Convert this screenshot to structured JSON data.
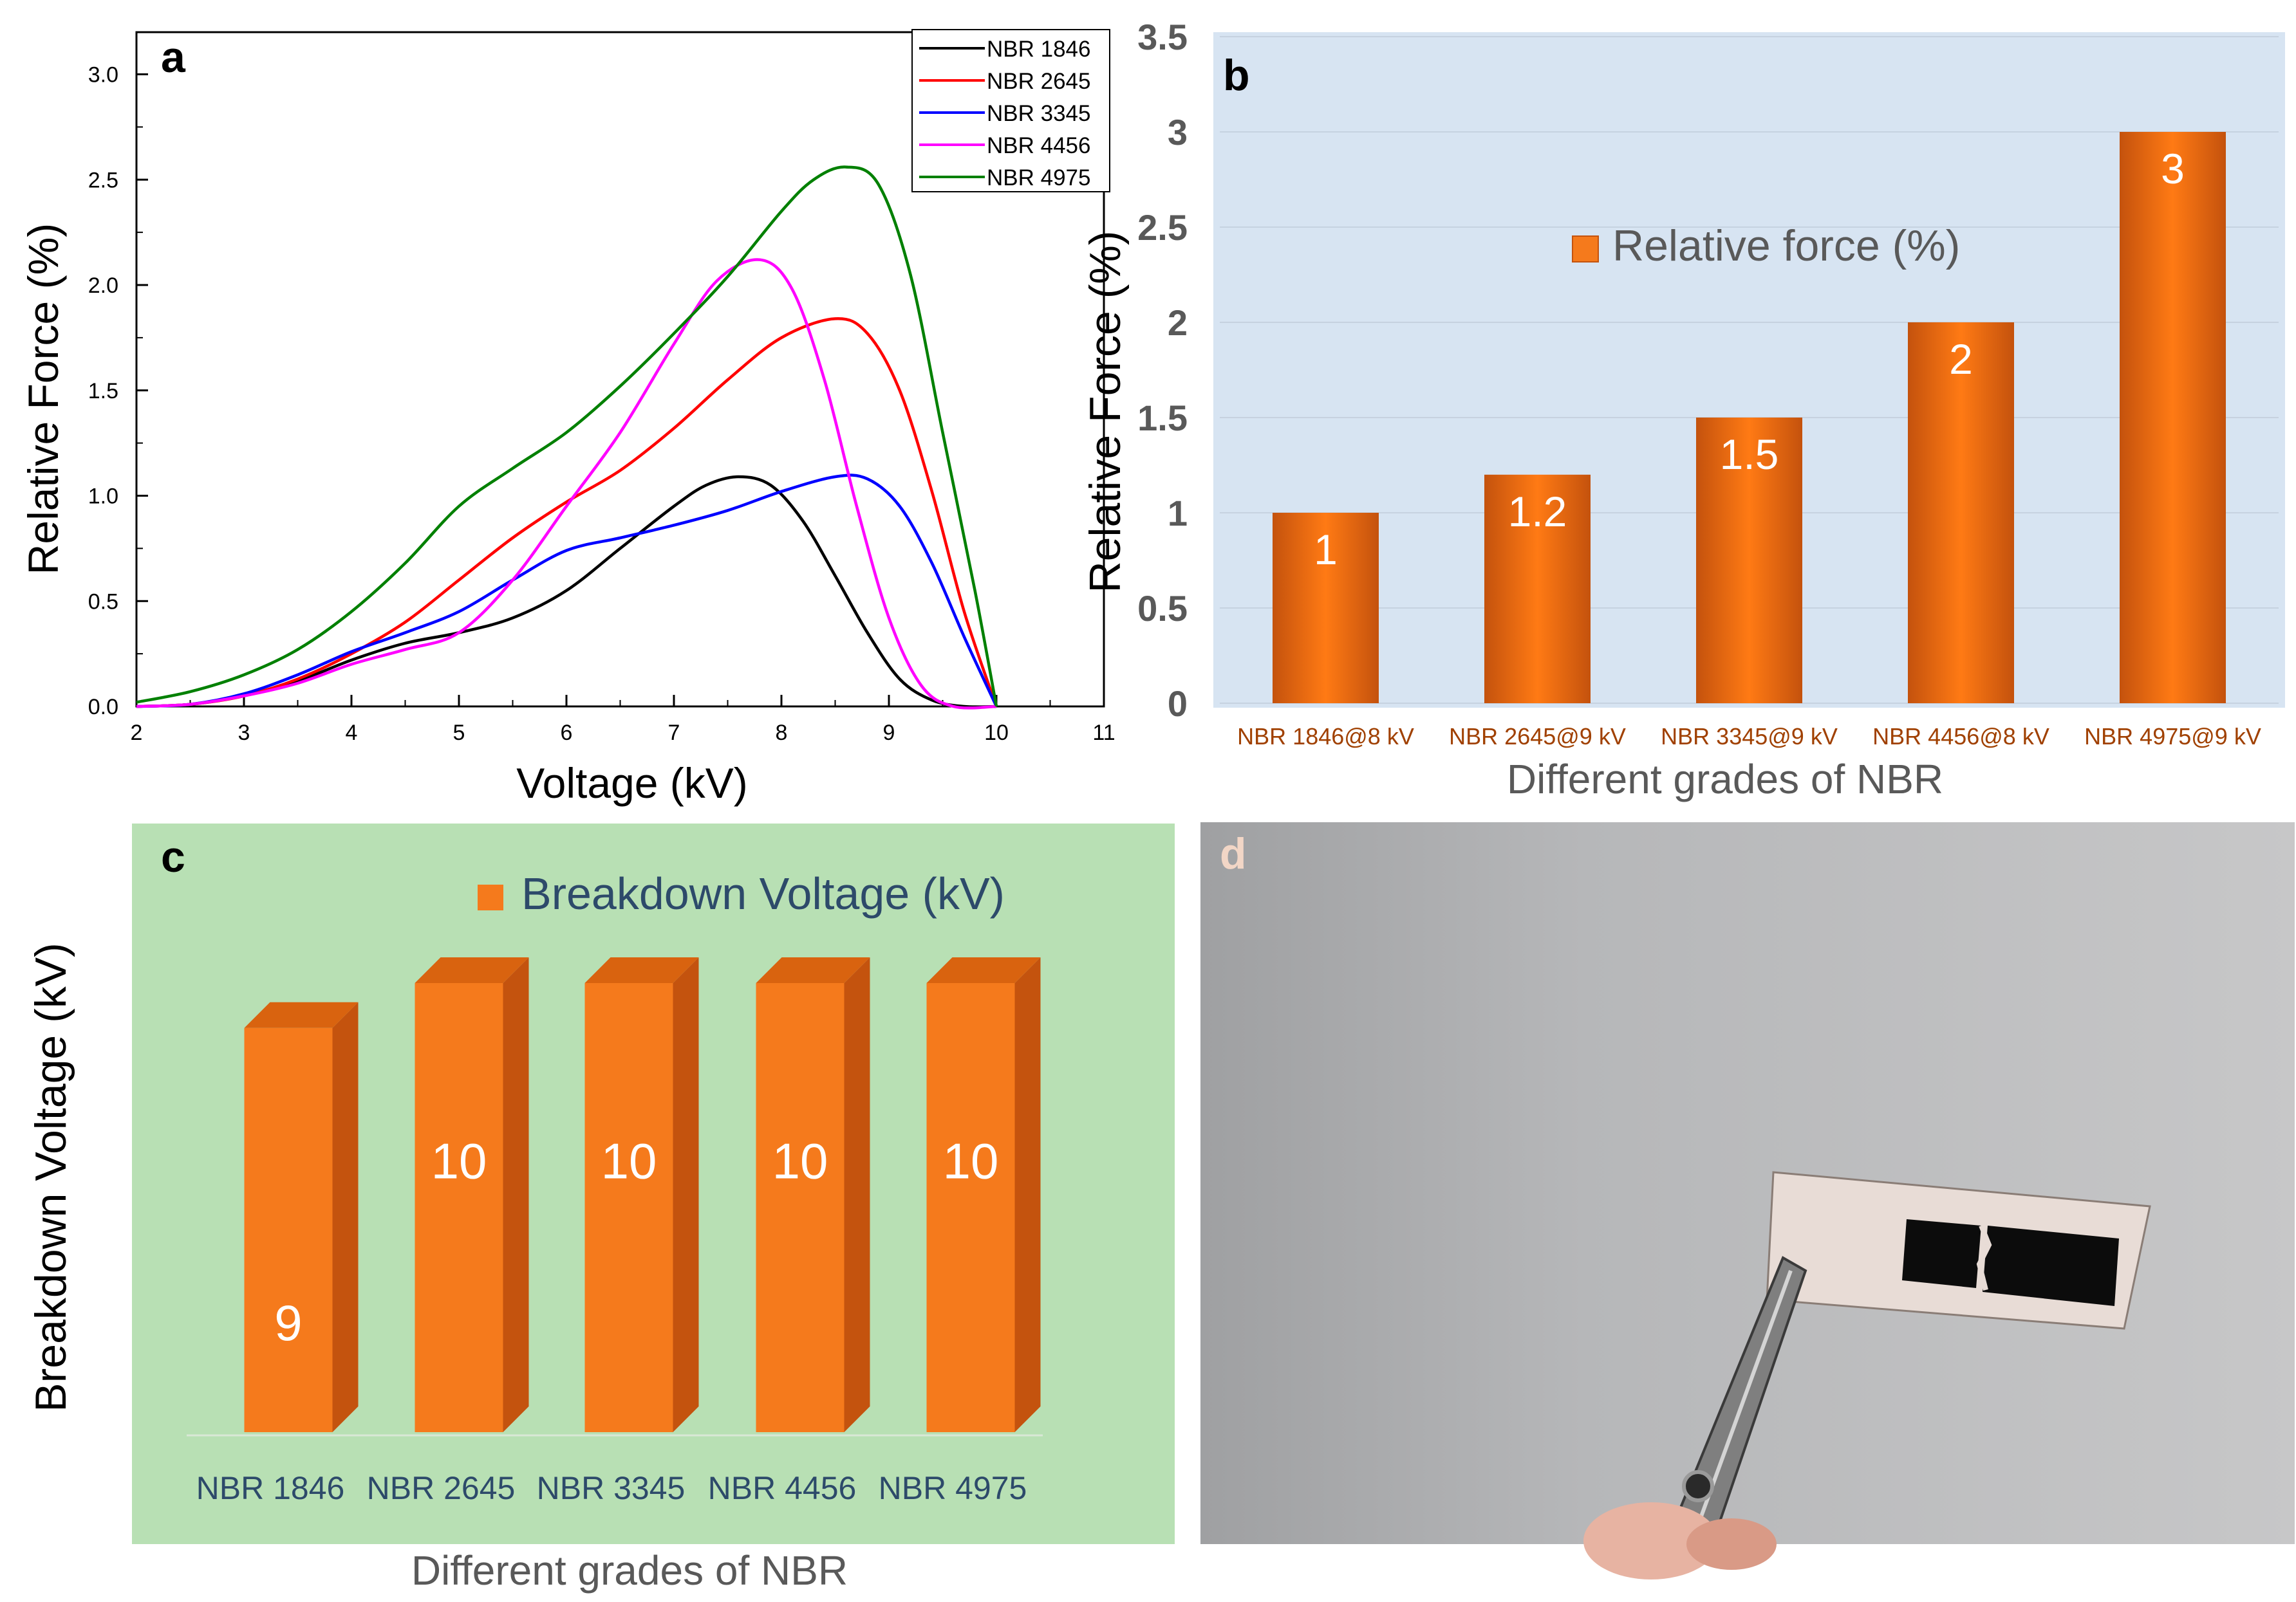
{
  "panel_letters": {
    "a": "a",
    "b": "b",
    "c": "c",
    "d": "d"
  },
  "colors": {
    "black": "#000000",
    "red": "#ff0000",
    "blue": "#0000ff",
    "magenta": "#ff00ff",
    "green": "#008000",
    "bar_orange": "#f57a1c",
    "bar_side": "#c4530e",
    "b_bg": "#d7e4f2",
    "c_bg": "#b8e0b4",
    "b_tick_text": "#a04000",
    "c_tick_text": "#2d4a6a",
    "data_label": "#ffffff"
  },
  "chart_data": [
    {
      "id": "a",
      "type": "line",
      "xlabel": "Voltage (kV)",
      "ylabel": "Relative Force (%)",
      "xlim": [
        2,
        11
      ],
      "ylim": [
        0,
        3.2
      ],
      "xticks": [
        "2",
        "3",
        "4",
        "5",
        "6",
        "7",
        "8",
        "9",
        "10",
        "11"
      ],
      "yticks": [
        "0.0",
        "0.5",
        "1.0",
        "1.5",
        "2.0",
        "2.5",
        "3.0"
      ],
      "legend_position": "top-right",
      "series": [
        {
          "name": "NBR 1846",
          "color": "#000000",
          "x": [
            2,
            2.5,
            3,
            3.5,
            4,
            4.5,
            5,
            5.5,
            6,
            6.5,
            7,
            7.3,
            7.6,
            7.9,
            8.2,
            8.5,
            8.8,
            9.1,
            9.4,
            9.7,
            10
          ],
          "y": [
            0,
            0.01,
            0.05,
            0.12,
            0.22,
            0.3,
            0.35,
            0.42,
            0.55,
            0.75,
            0.95,
            1.05,
            1.09,
            1.05,
            0.88,
            0.62,
            0.35,
            0.13,
            0.03,
            0,
            0
          ]
        },
        {
          "name": "NBR 2645",
          "color": "#ff0000",
          "x": [
            2,
            2.5,
            3,
            3.5,
            4,
            4.5,
            5,
            5.5,
            6,
            6.5,
            7,
            7.5,
            8,
            8.5,
            8.8,
            9.1,
            9.4,
            9.7,
            10
          ],
          "y": [
            0,
            0.01,
            0.05,
            0.13,
            0.25,
            0.4,
            0.6,
            0.8,
            0.97,
            1.12,
            1.32,
            1.55,
            1.75,
            1.84,
            1.77,
            1.5,
            1.02,
            0.45,
            0
          ]
        },
        {
          "name": "NBR 3345",
          "color": "#0000ff",
          "x": [
            2,
            2.5,
            3,
            3.5,
            4,
            4.5,
            5,
            5.5,
            6,
            6.5,
            7,
            7.5,
            8,
            8.5,
            8.8,
            9.1,
            9.4,
            9.7,
            10
          ],
          "y": [
            0,
            0.01,
            0.06,
            0.15,
            0.26,
            0.35,
            0.45,
            0.6,
            0.74,
            0.8,
            0.86,
            0.93,
            1.02,
            1.09,
            1.08,
            0.95,
            0.68,
            0.33,
            0
          ]
        },
        {
          "name": "NBR 4456",
          "color": "#ff00ff",
          "x": [
            2,
            2.5,
            3,
            3.5,
            4,
            4.5,
            5,
            5.5,
            6,
            6.5,
            7,
            7.4,
            7.8,
            8.1,
            8.4,
            8.7,
            9.0,
            9.3,
            9.6,
            10
          ],
          "y": [
            0,
            0.01,
            0.05,
            0.11,
            0.2,
            0.27,
            0.35,
            0.6,
            0.95,
            1.3,
            1.72,
            2.02,
            2.12,
            1.98,
            1.55,
            0.95,
            0.42,
            0.1,
            0,
            0
          ]
        },
        {
          "name": "NBR 4975",
          "color": "#008000",
          "x": [
            2,
            2.5,
            3,
            3.5,
            4,
            4.5,
            5,
            5.5,
            6,
            6.5,
            7,
            7.5,
            8,
            8.3,
            8.6,
            8.9,
            9.2,
            9.5,
            9.8,
            10
          ],
          "y": [
            0.02,
            0.07,
            0.15,
            0.27,
            0.45,
            0.68,
            0.95,
            1.13,
            1.3,
            1.52,
            1.77,
            2.04,
            2.35,
            2.5,
            2.56,
            2.48,
            2.05,
            1.3,
            0.55,
            0
          ]
        }
      ]
    },
    {
      "id": "b",
      "type": "bar",
      "categories": [
        "NBR 1846@8 kV",
        "NBR 2645@9 kV",
        "NBR 3345@9 kV",
        "NBR 4456@8 kV",
        "NBR 4975@9 kV"
      ],
      "values": [
        1,
        1.2,
        1.5,
        2,
        3
      ],
      "data_labels": [
        "1",
        "1.2",
        "1.5",
        "2",
        "3"
      ],
      "legend": "Relative force (%)",
      "xlabel": "Different grades of NBR",
      "ylabel": "Relative Force (%)",
      "ylim": [
        0,
        3.5
      ],
      "yticks": [
        "0",
        "0.5",
        "1",
        "1.5",
        "2",
        "2.5",
        "3",
        "3.5"
      ],
      "grid": true
    },
    {
      "id": "c",
      "type": "bar",
      "categories": [
        "NBR 1846",
        "NBR 2645",
        "NBR 3345",
        "NBR 4456",
        "NBR 4975"
      ],
      "values": [
        9,
        10,
        10,
        10,
        10
      ],
      "data_labels": [
        "9",
        "10",
        "10",
        "10",
        "10"
      ],
      "legend": "Breakdown Voltage (kV)",
      "xlabel": "Different grades of NBR",
      "ylabel": "Breakdown Voltage (kV)",
      "ylim": [
        0,
        11
      ],
      "style": "3d"
    }
  ]
}
